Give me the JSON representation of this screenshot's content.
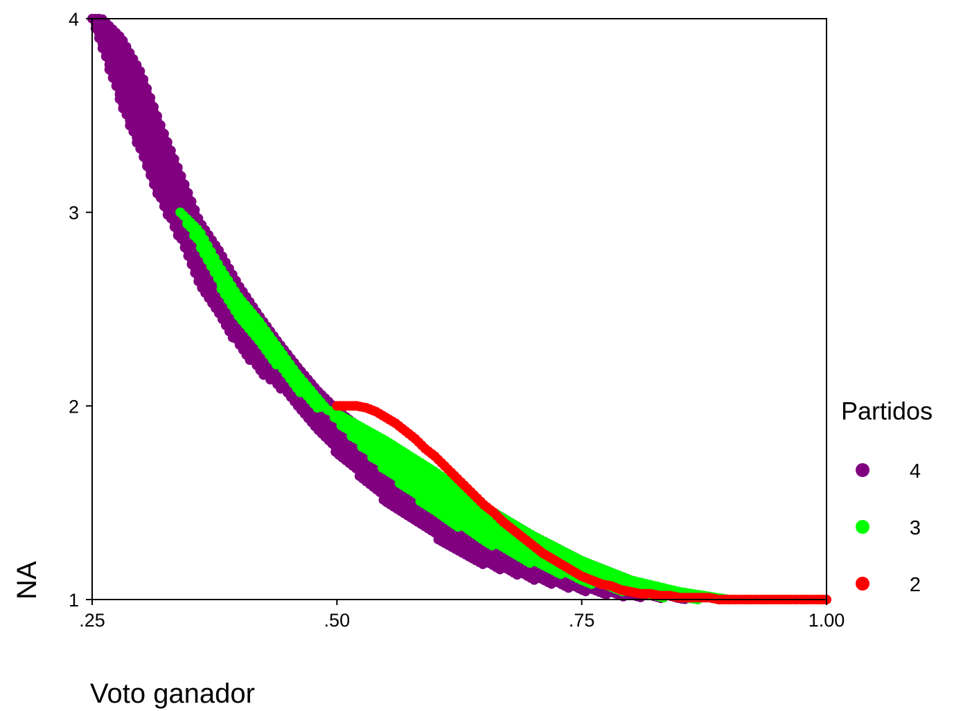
{
  "chart_data": {
    "type": "scatter",
    "xlabel": "Voto ganador",
    "ylabel": "NA",
    "xlim": [
      0.25,
      1.0
    ],
    "ylim": [
      1,
      4
    ],
    "x_ticks": [
      ".25",
      ".50",
      ".75",
      "1.00"
    ],
    "y_ticks": [
      "1",
      "2",
      "3",
      "4"
    ],
    "grid": false,
    "legend": {
      "title": "Partidos",
      "placement": "right",
      "entries": [
        {
          "label": "4",
          "color": "#800080"
        },
        {
          "label": "3",
          "color": "#00ff00"
        },
        {
          "label": "2",
          "color": "#ff0000"
        }
      ]
    },
    "series": [
      {
        "name": "4",
        "color": "#800080",
        "description_bounds": {
          "upper": [
            [
              0.25,
              4.0
            ],
            [
              0.26,
              4.0
            ],
            [
              0.28,
              3.9
            ],
            [
              0.3,
              3.72
            ],
            [
              0.32,
              3.45
            ],
            [
              0.34,
              3.2
            ],
            [
              0.36,
              2.95
            ],
            [
              0.38,
              2.8
            ],
            [
              0.4,
              2.62
            ],
            [
              0.42,
              2.47
            ],
            [
              0.44,
              2.33
            ],
            [
              0.46,
              2.2
            ],
            [
              0.48,
              2.08
            ],
            [
              0.5,
              1.98
            ],
            [
              0.55,
              1.78
            ],
            [
              0.6,
              1.62
            ],
            [
              0.65,
              1.48
            ],
            [
              0.7,
              1.33
            ],
            [
              0.75,
              1.2
            ],
            [
              0.8,
              1.1
            ],
            [
              0.85,
              1.03
            ],
            [
              0.9,
              1.0
            ]
          ],
          "lower": [
            [
              0.25,
              4.0
            ],
            [
              0.26,
              3.85
            ],
            [
              0.28,
              3.55
            ],
            [
              0.3,
              3.3
            ],
            [
              0.32,
              3.05
            ],
            [
              0.34,
              2.85
            ],
            [
              0.36,
              2.62
            ],
            [
              0.38,
              2.45
            ],
            [
              0.4,
              2.3
            ],
            [
              0.42,
              2.18
            ],
            [
              0.44,
              2.1
            ],
            [
              0.46,
              2.0
            ],
            [
              0.48,
              1.88
            ],
            [
              0.5,
              1.75
            ],
            [
              0.55,
              1.5
            ],
            [
              0.6,
              1.32
            ],
            [
              0.65,
              1.18
            ],
            [
              0.7,
              1.1
            ],
            [
              0.75,
              1.04
            ],
            [
              0.8,
              1.01
            ],
            [
              0.85,
              1.0
            ],
            [
              0.9,
              1.0
            ]
          ]
        }
      },
      {
        "name": "3",
        "color": "#00ff00",
        "description_bounds": {
          "upper": [
            [
              0.34,
              3.0
            ],
            [
              0.36,
              2.9
            ],
            [
              0.38,
              2.72
            ],
            [
              0.4,
              2.56
            ],
            [
              0.42,
              2.44
            ],
            [
              0.44,
              2.3
            ],
            [
              0.46,
              2.16
            ],
            [
              0.48,
              2.04
            ],
            [
              0.49,
              1.98
            ],
            [
              0.5,
              1.96
            ],
            [
              0.55,
              1.82
            ],
            [
              0.6,
              1.66
            ],
            [
              0.65,
              1.48
            ],
            [
              0.7,
              1.33
            ],
            [
              0.75,
              1.2
            ],
            [
              0.8,
              1.1
            ],
            [
              0.85,
              1.04
            ],
            [
              0.9,
              1.0
            ]
          ],
          "lower": [
            [
              0.34,
              3.0
            ],
            [
              0.36,
              2.82
            ],
            [
              0.38,
              2.62
            ],
            [
              0.4,
              2.45
            ],
            [
              0.42,
              2.32
            ],
            [
              0.44,
              2.2
            ],
            [
              0.46,
              2.08
            ],
            [
              0.48,
              1.99
            ],
            [
              0.49,
              1.98
            ],
            [
              0.5,
              1.92
            ],
            [
              0.55,
              1.66
            ],
            [
              0.6,
              1.44
            ],
            [
              0.65,
              1.3
            ],
            [
              0.7,
              1.18
            ],
            [
              0.75,
              1.09
            ],
            [
              0.8,
              1.03
            ],
            [
              0.85,
              1.0
            ],
            [
              0.9,
              1.0
            ]
          ]
        }
      },
      {
        "name": "2",
        "color": "#ff0000",
        "points": [
          [
            0.5,
            2.0
          ],
          [
            0.51,
            2.0
          ],
          [
            0.52,
            2.0
          ],
          [
            0.53,
            1.99
          ],
          [
            0.54,
            1.97
          ],
          [
            0.55,
            1.94
          ],
          [
            0.56,
            1.91
          ],
          [
            0.57,
            1.87
          ],
          [
            0.58,
            1.83
          ],
          [
            0.59,
            1.78
          ],
          [
            0.6,
            1.74
          ],
          [
            0.61,
            1.69
          ],
          [
            0.62,
            1.64
          ],
          [
            0.63,
            1.59
          ],
          [
            0.64,
            1.54
          ],
          [
            0.65,
            1.49
          ],
          [
            0.66,
            1.45
          ],
          [
            0.67,
            1.4
          ],
          [
            0.68,
            1.36
          ],
          [
            0.69,
            1.32
          ],
          [
            0.7,
            1.28
          ],
          [
            0.71,
            1.24
          ],
          [
            0.72,
            1.21
          ],
          [
            0.73,
            1.18
          ],
          [
            0.74,
            1.15
          ],
          [
            0.75,
            1.12
          ],
          [
            0.76,
            1.1
          ],
          [
            0.77,
            1.08
          ],
          [
            0.78,
            1.07
          ],
          [
            0.79,
            1.05
          ],
          [
            0.8,
            1.04
          ],
          [
            0.81,
            1.03
          ],
          [
            0.82,
            1.03
          ],
          [
            0.83,
            1.02
          ],
          [
            0.84,
            1.02
          ],
          [
            0.85,
            1.01
          ],
          [
            0.86,
            1.01
          ],
          [
            0.87,
            1.01
          ],
          [
            0.88,
            1.01
          ],
          [
            0.89,
            1.0
          ],
          [
            0.9,
            1.0
          ],
          [
            0.91,
            1.0
          ],
          [
            0.92,
            1.0
          ],
          [
            0.93,
            1.0
          ],
          [
            0.94,
            1.0
          ],
          [
            0.95,
            1.0
          ],
          [
            0.96,
            1.0
          ],
          [
            0.97,
            1.0
          ],
          [
            0.98,
            1.0
          ],
          [
            0.99,
            1.0
          ],
          [
            1.0,
            1.0
          ]
        ]
      }
    ]
  }
}
